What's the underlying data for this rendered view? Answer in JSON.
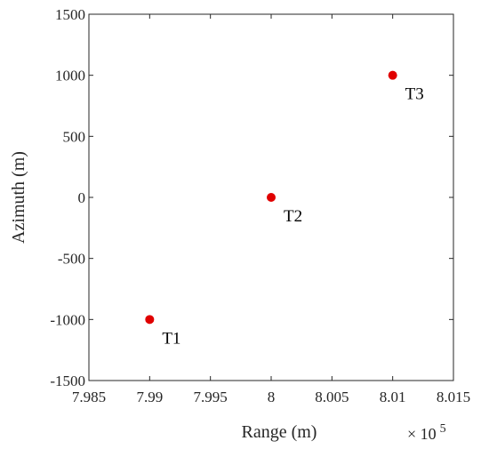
{
  "chart_data": {
    "type": "scatter",
    "title": "",
    "xlabel": "Range (m)",
    "ylabel": "Azimuth (m)",
    "x_multiplier_label": {
      "base": "× 10",
      "exponent": "5"
    },
    "xlim": [
      7.985,
      8.015
    ],
    "ylim": [
      -1500,
      1500
    ],
    "xticks": [
      "7.985",
      "7.99",
      "7.995",
      "8",
      "8.005",
      "8.01",
      "8.015"
    ],
    "yticks": [
      "1500",
      "1000",
      "500",
      "0",
      "-500",
      "-1000",
      "-1500"
    ],
    "grid": false,
    "marker_color": "#e00000",
    "series": [
      {
        "points": [
          {
            "label": "T1",
            "x": 7.99,
            "y": -1000
          },
          {
            "label": "T2",
            "x": 8.0,
            "y": 0
          },
          {
            "label": "T3",
            "x": 8.01,
            "y": 1000
          }
        ]
      }
    ]
  }
}
